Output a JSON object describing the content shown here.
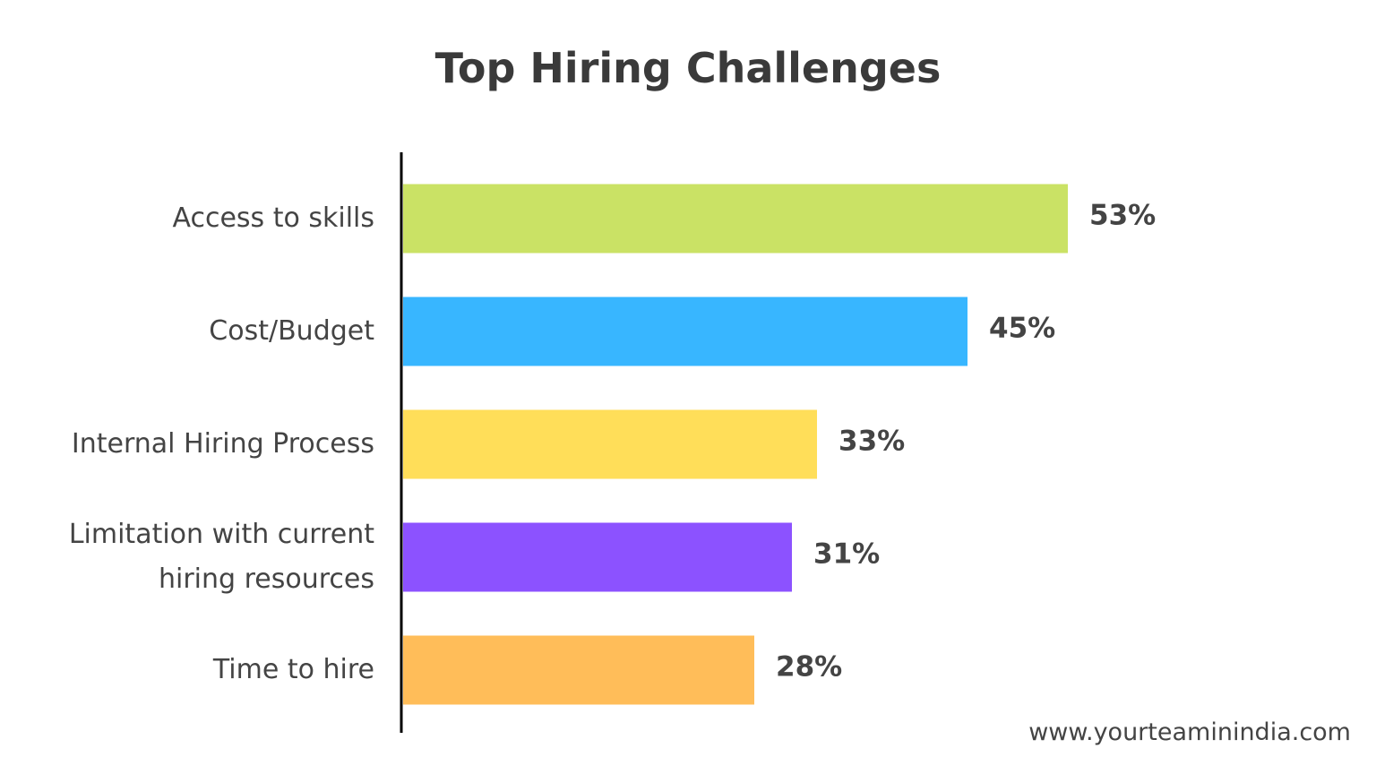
{
  "chart_data": {
    "type": "bar",
    "orientation": "horizontal",
    "title": "Top Hiring Challenges",
    "categories": [
      "Access to skills",
      "Cost/Budget",
      "Internal Hiring Process",
      "Limitation with current hiring resources",
      "Time to hire"
    ],
    "values": [
      53,
      45,
      33,
      31,
      28
    ],
    "value_labels": [
      "53%",
      "45%",
      "33%",
      "31%",
      "28%"
    ],
    "colors": [
      "#cae265",
      "#38b6ff",
      "#ffde59",
      "#8c52ff",
      "#ffbd59"
    ],
    "source": "www.yourteaminindia.com"
  }
}
